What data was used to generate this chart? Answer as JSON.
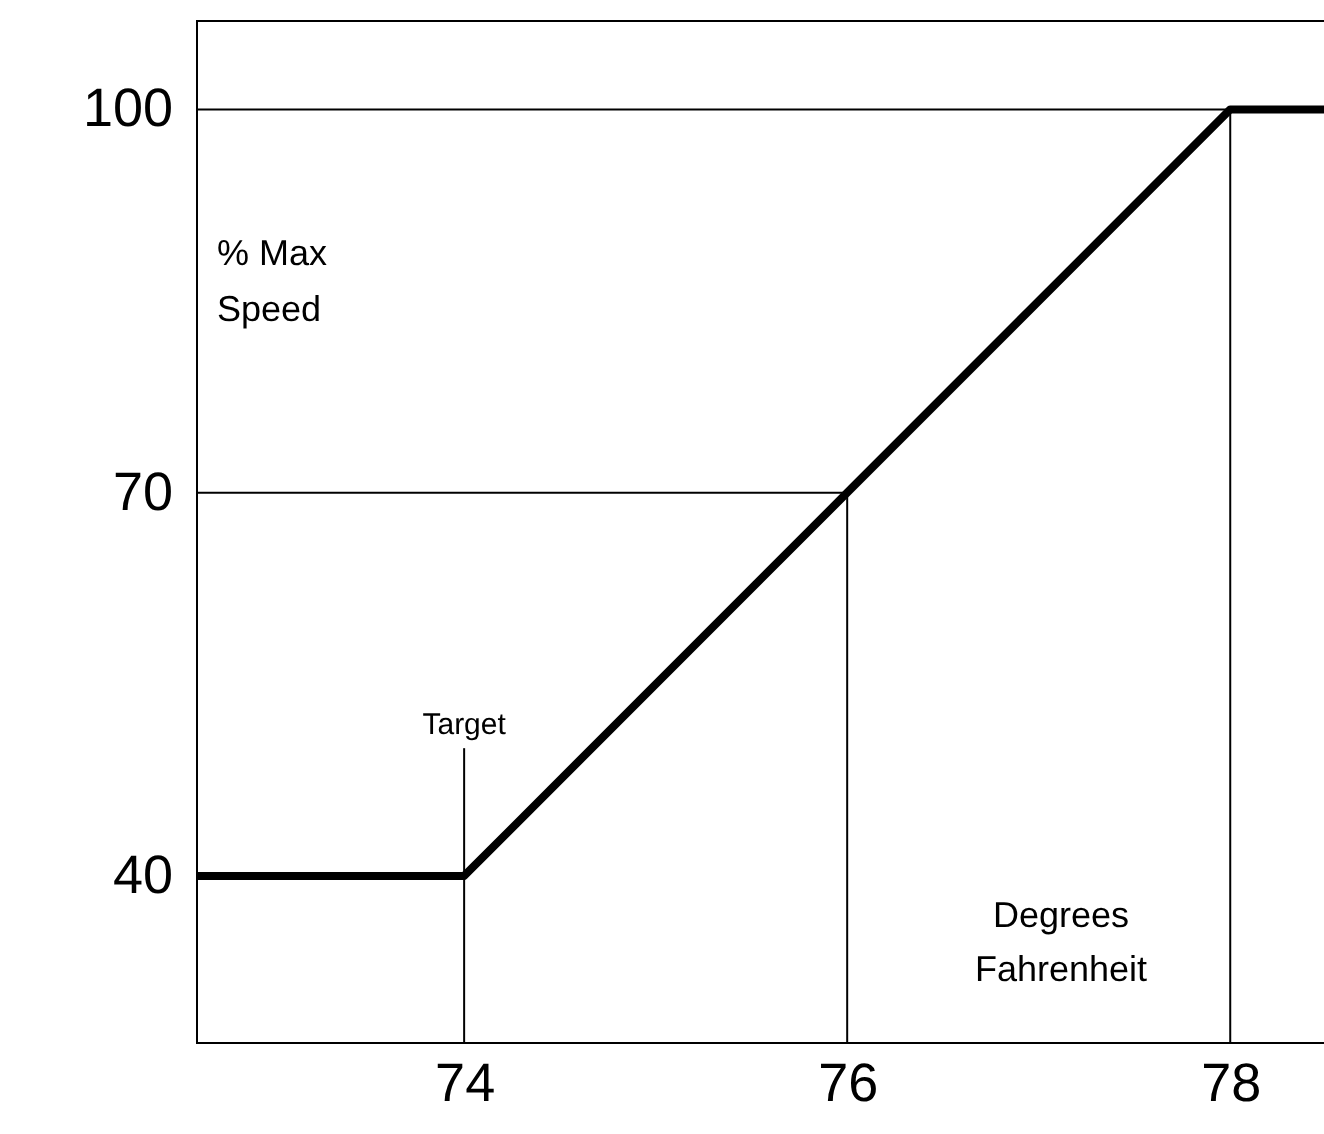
{
  "chart_data": {
    "type": "line",
    "xlabel": "Degrees Fahrenheit",
    "ylabel": "% Max Speed",
    "x": [
      72.6,
      74,
      76,
      78,
      78.5
    ],
    "series": [
      {
        "color": "#000000",
        "values": [
          40,
          40,
          70,
          100,
          100
        ]
      }
    ],
    "xlim": [
      72.6,
      78.5
    ],
    "ylim": [
      27,
      107
    ],
    "xticks": [
      74,
      76,
      78
    ],
    "yticks": [
      40,
      70,
      100
    ],
    "ref_lines": [
      {
        "axis": "y",
        "value": 100
      },
      {
        "axis": "y",
        "value": 70
      },
      {
        "axis": "x",
        "value": 74
      },
      {
        "axis": "x",
        "value": 76
      },
      {
        "axis": "x",
        "value": 78
      }
    ],
    "annotations": [
      {
        "text": "Target",
        "x": 74,
        "y": 50
      }
    ],
    "grid": false,
    "marker": "none",
    "line_style": "solid"
  }
}
